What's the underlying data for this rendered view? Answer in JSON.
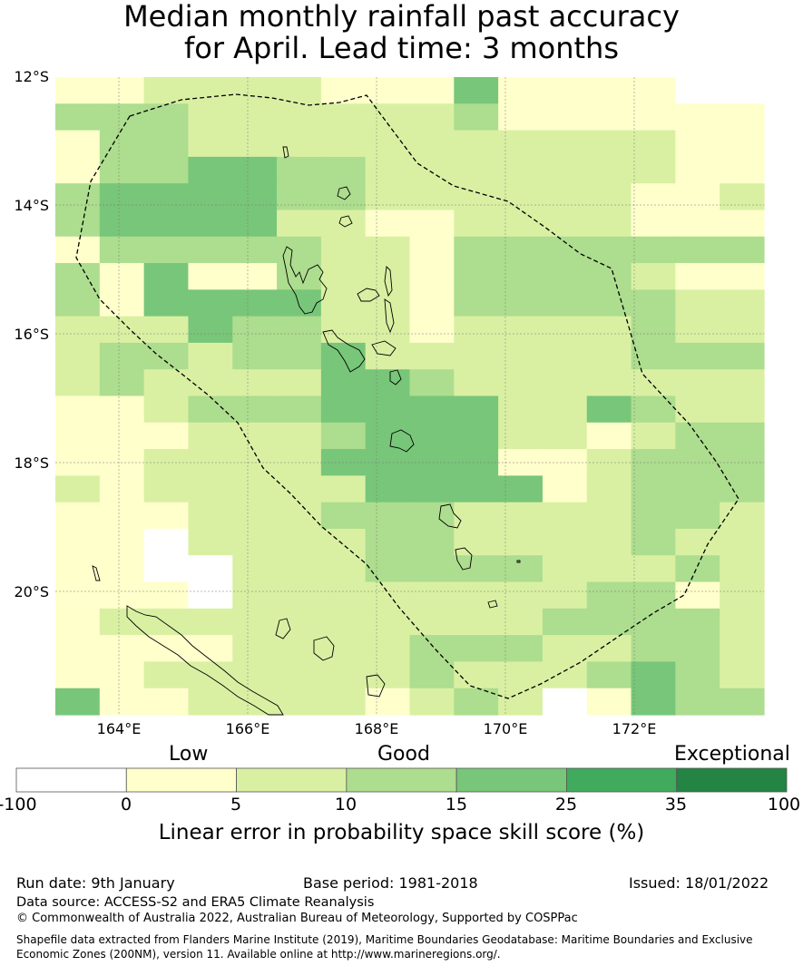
{
  "title_line1": "Median monthly rainfall past accuracy",
  "title_line2": "for April. Lead time: 3 months",
  "axes": {
    "lat_labels": [
      "12°S",
      "14°S",
      "16°S",
      "18°S",
      "20°S"
    ],
    "lon_labels": [
      "164°E",
      "166°E",
      "168°E",
      "170°E",
      "172°E"
    ]
  },
  "legend": {
    "categories": [
      "Low",
      "Good",
      "Exceptional"
    ],
    "ticks": [
      "-100",
      "0",
      "5",
      "10",
      "15",
      "25",
      "35",
      "100"
    ],
    "colors": [
      "#ffffff",
      "#ffffcc",
      "#d9f0a3",
      "#addd8e",
      "#78c679",
      "#41ab5d",
      "#238443"
    ],
    "label": "Linear error in probability space skill score (%)"
  },
  "footer": {
    "run_date": "Run date: 9th January",
    "base_period": "Base period: 1981-2018",
    "issued": "Issued: 18/01/2022",
    "data_source": "Data source: ACCESS-S2 and ERA5 Climate Reanalysis",
    "copyright": "© Commonwealth of Australia 2022, Australian Bureau of Meteorology, Supported by COSPPac",
    "shapefile_line1": "Shapefile data extracted from Flanders Marine Institute (2019), Maritime Boundaries Geodatabase: Maritime Boundaries and Exclusive",
    "shapefile_line2": "Economic Zones (200NM), version 11. Available online at http://www.marineregions.org/."
  },
  "chart_data": {
    "type": "heatmap",
    "palette_by_class": [
      "#ffffff",
      "#ffffcc",
      "#d9f0a3",
      "#addd8e",
      "#78c679"
    ],
    "class_meaning": [
      "<0",
      "0-5",
      "5-10",
      "10-15",
      "15-25"
    ],
    "grid": [
      "1122221114111100",
      "3332222223111111",
      "1332222222222211",
      "1334433222222211",
      "3444433222222112",
      "3444422112222111",
      "1333332213333333",
      "3141132213333211",
      "3144442213333322",
      "2224332212222322",
      "2332334222222333",
      "2322224432222222",
      "1123334444224322",
      "1112223444221233",
      "1122224444112333",
      "2122222444412333",
      "1112223332222332",
      "1102222332222322",
      "1100222333322232",
      "1110222222223312",
      "1222222222233332",
      "1111222233322332",
      "1122222232223432",
      "4112222123201433"
    ]
  }
}
